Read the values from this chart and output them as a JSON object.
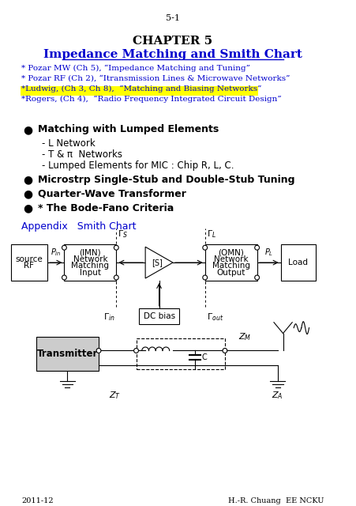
{
  "page_number": "5-1",
  "chapter_title": "CHAPTER 5",
  "subtitle": "Impedance Matching and Smith Chart",
  "refs": [
    "* Pozar MW (Ch 5), “Impedance Matching and Tuning”",
    "* Pozar RF (Ch 2), “Itransmission Lines & Microwave Networks”",
    "*Ludwig, (Ch 3, Ch 8),  “Matching and Biasing Networks”",
    "*Rogers, (Ch 4),  “Radio Frequency Integrated Circuit Design”"
  ],
  "bullets": [
    {
      "bold": true,
      "text": "Matching with Lumped Elements"
    },
    {
      "bold": false,
      "text": "- L Network"
    },
    {
      "bold": false,
      "text": "- T & π  Networks"
    },
    {
      "bold": false,
      "text": "- Lumped Elements for MIC : Chip R, L, C."
    },
    {
      "bold": true,
      "text": "Microstrp Single-Stub and Double-Stub Tuning"
    },
    {
      "bold": true,
      "text": "Quarter-Wave Transformer"
    },
    {
      "bold": true,
      "text": "* The Bode-Fano Criteria"
    }
  ],
  "appendix_text": "Appendix   Smith Chart",
  "footer_left": "2011-12",
  "footer_right": "H.-R. Chuang  EE NCKU",
  "blue_color": "#0000CD",
  "highlight_color": "#FFFF00"
}
